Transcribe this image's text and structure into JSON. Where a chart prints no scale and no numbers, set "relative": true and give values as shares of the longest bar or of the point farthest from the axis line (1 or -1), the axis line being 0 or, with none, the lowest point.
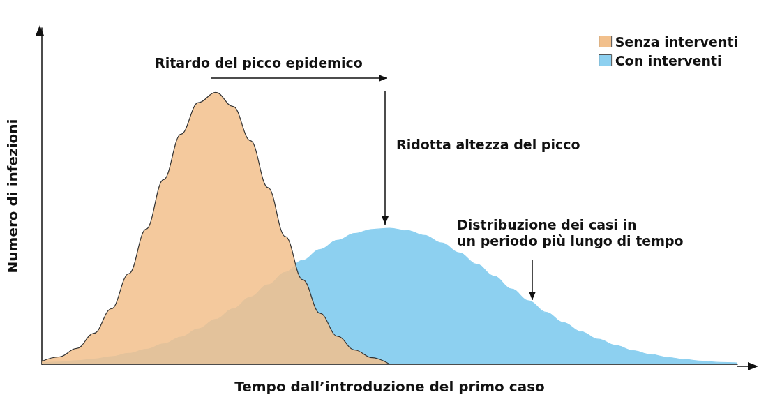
{
  "chart_data": {
    "type": "area",
    "relative": true,
    "xlabel": "Tempo dall’introduzione del primo caso",
    "ylabel": "Numero di infezioni",
    "categories": [
      null,
      null,
      null,
      null,
      null,
      null,
      null,
      null,
      null,
      null,
      null,
      null,
      null,
      null,
      null,
      null,
      null,
      null,
      null,
      null,
      null,
      null,
      null,
      null,
      null,
      null,
      null,
      null,
      null,
      null,
      null,
      null,
      null,
      null,
      null,
      null,
      null,
      null,
      null,
      null,
      null
    ],
    "series": [
      {
        "name": "Senza interventi",
        "color": "#f2c08c",
        "values": [
          0.011,
          0.027,
          0.058,
          0.114,
          0.204,
          0.333,
          0.497,
          0.679,
          0.846,
          0.962,
          1.0,
          0.948,
          0.822,
          0.65,
          0.47,
          0.311,
          0.187,
          0.103,
          0.052,
          0.024,
          0,
          null,
          null,
          null,
          null,
          null,
          null,
          null,
          null,
          null,
          null,
          null,
          null,
          null,
          null,
          null,
          null,
          null,
          null,
          null,
          null
        ]
      },
      {
        "name": "Con interventi",
        "color": "#8dd0f0",
        "values": [
          0.005,
          0.008,
          0.013,
          0.019,
          0.028,
          0.04,
          0.055,
          0.075,
          0.1,
          0.13,
          0.165,
          0.204,
          0.247,
          0.292,
          0.338,
          0.382,
          0.422,
          0.456,
          0.481,
          0.496,
          0.5,
          0.492,
          0.474,
          0.446,
          0.41,
          0.368,
          0.324,
          0.277,
          0.233,
          0.191,
          0.153,
          0.12,
          0.092,
          0.069,
          0.05,
          0.036,
          0.025,
          0.017,
          0.011,
          0.007,
          0.005
        ]
      }
    ],
    "annotations": [
      "Ritardo del picco epidemico",
      "Ridotta altezza del picco",
      "Distribuzione dei casi in\nun periodo più lungo di tempo"
    ],
    "legend": "top right",
    "grid": false,
    "marker": "none"
  }
}
